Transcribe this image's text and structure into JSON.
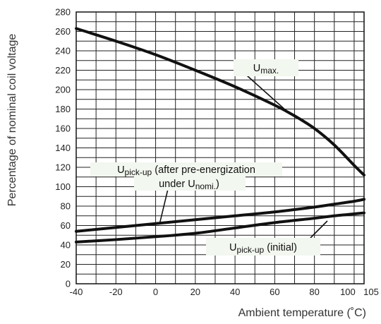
{
  "chart_data": {
    "type": "line",
    "xlabel": "Ambient temperature (˚C)",
    "ylabel": "Percentage of nominal coil voltage",
    "xlim": [
      -40,
      105
    ],
    "ylim": [
      0,
      280
    ],
    "x_ticks": [
      "-40",
      "-20",
      "0",
      "20",
      "40",
      "60",
      "80",
      "100",
      "105"
    ],
    "y_ticks": [
      "0",
      "20",
      "40",
      "60",
      "80",
      "100",
      "120",
      "140",
      "160",
      "180",
      "200",
      "220",
      "240",
      "260",
      "280"
    ],
    "grid": true,
    "series": [
      {
        "name": "Umax.",
        "x": [
          -40,
          -20,
          0,
          20,
          40,
          60,
          70,
          80,
          90,
          100,
          105
        ],
        "y": [
          263,
          250,
          236,
          220,
          203,
          184,
          173,
          160,
          143,
          122,
          112
        ]
      },
      {
        "name": "Upick-up (after pre-energization under Unomi.)",
        "x": [
          -40,
          -20,
          0,
          20,
          40,
          60,
          80,
          90,
          100,
          105
        ],
        "y": [
          54,
          58,
          62,
          66,
          70,
          74,
          79,
          82,
          85,
          87
        ]
      },
      {
        "name": "Upick-up (initial)",
        "x": [
          -40,
          -20,
          0,
          20,
          40,
          60,
          80,
          90,
          100,
          105
        ],
        "y": [
          43,
          45.5,
          48.5,
          52,
          57.5,
          63,
          67.5,
          70,
          72,
          73
        ]
      }
    ],
    "annotations": [
      {
        "main": "U",
        "sub": "max.",
        "rest": ""
      },
      {
        "main": "U",
        "sub": "pick-up",
        "rest": " (after pre-energization"
      },
      {
        "main": "under U",
        "sub": "nomi.",
        "rest": ")"
      },
      {
        "main": "U",
        "sub": "pick-up",
        "rest": " (initial)"
      }
    ]
  }
}
